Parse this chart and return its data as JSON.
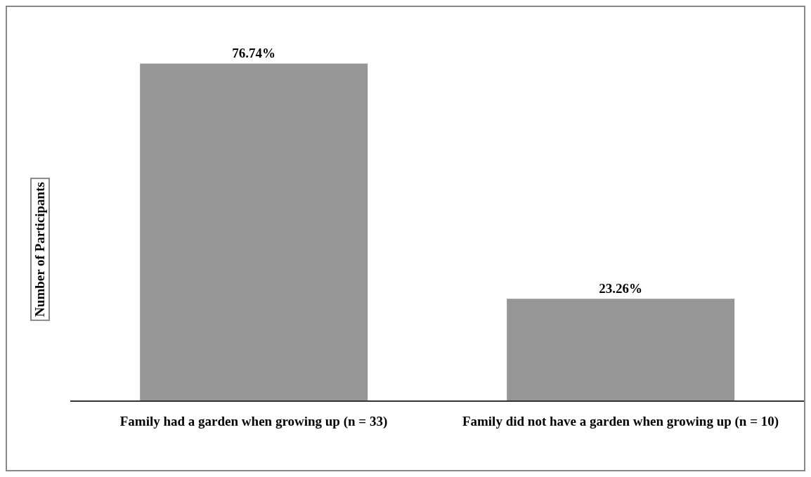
{
  "chart_data": {
    "type": "bar",
    "ylabel": "Number of Participants",
    "categories": [
      "Family had a garden when growing up (n = 33)",
      "Family did not have a garden when growing up (n = 10)"
    ],
    "values": [
      76.74,
      23.26
    ],
    "value_labels": [
      "76.74%",
      "23.26%"
    ],
    "color": "#969696",
    "grid": false,
    "legend": false
  }
}
